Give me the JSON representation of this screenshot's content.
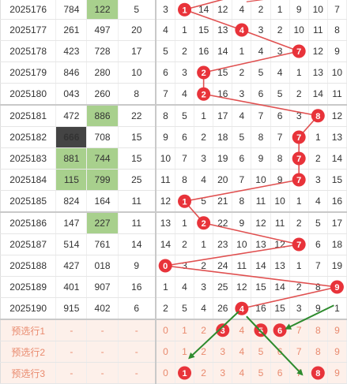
{
  "chart_data": {
    "type": "table",
    "rows": [
      {
        "issue": "2025176",
        "prize": "784",
        "prize_pair": false,
        "prize_tri": false,
        "col2": "122",
        "col2_pair": true,
        "sum": "5",
        "miss": [
          "3",
          "",
          "14",
          "12",
          "4",
          "2",
          "1",
          "9",
          "10",
          "7"
        ],
        "hit": 1
      },
      {
        "issue": "2025177",
        "prize": "261",
        "prize_pair": false,
        "prize_tri": false,
        "col2": "497",
        "col2_pair": false,
        "sum": "20",
        "miss": [
          "4",
          "1",
          "15",
          "13",
          "",
          "3",
          "2",
          "10",
          "11",
          "8"
        ],
        "hit": 4
      },
      {
        "issue": "2025178",
        "prize": "423",
        "prize_pair": false,
        "prize_tri": false,
        "col2": "728",
        "col2_pair": false,
        "sum": "17",
        "miss": [
          "5",
          "2",
          "16",
          "14",
          "1",
          "4",
          "3",
          "",
          "12",
          "9"
        ],
        "hit": 7
      },
      {
        "issue": "2025179",
        "prize": "846",
        "prize_pair": false,
        "prize_tri": false,
        "col2": "280",
        "col2_pair": false,
        "sum": "10",
        "miss": [
          "6",
          "3",
          "",
          "15",
          "2",
          "5",
          "4",
          "1",
          "13",
          "10"
        ],
        "hit": 2
      },
      {
        "issue": "2025180",
        "prize": "043",
        "prize_pair": false,
        "prize_tri": false,
        "col2": "260",
        "col2_pair": false,
        "sum": "8",
        "miss": [
          "7",
          "4",
          "",
          "16",
          "3",
          "6",
          "5",
          "2",
          "14",
          "11"
        ],
        "hit": 2
      },
      {
        "issue": "2025181",
        "prize": "472",
        "prize_pair": false,
        "prize_tri": false,
        "col2": "886",
        "col2_pair": true,
        "sum": "22",
        "miss": [
          "8",
          "5",
          "1",
          "17",
          "4",
          "7",
          "6",
          "3",
          "",
          "12"
        ],
        "hit": 8
      },
      {
        "issue": "2025182",
        "prize": "666",
        "prize_pair": false,
        "prize_tri": true,
        "col2": "708",
        "col2_pair": false,
        "sum": "15",
        "miss": [
          "9",
          "6",
          "2",
          "18",
          "5",
          "8",
          "7",
          "",
          "1",
          "13"
        ],
        "hit": 7
      },
      {
        "issue": "2025183",
        "prize": "881",
        "prize_pair": true,
        "prize_tri": false,
        "col2": "744",
        "col2_pair": true,
        "sum": "15",
        "miss": [
          "10",
          "7",
          "3",
          "19",
          "6",
          "9",
          "8",
          "",
          "2",
          "14"
        ],
        "hit": 7
      },
      {
        "issue": "2025184",
        "prize": "115",
        "prize_pair": true,
        "prize_tri": false,
        "col2": "799",
        "col2_pair": true,
        "sum": "25",
        "miss": [
          "11",
          "8",
          "4",
          "20",
          "7",
          "10",
          "9",
          "",
          "3",
          "15"
        ],
        "hit": 7
      },
      {
        "issue": "2025185",
        "prize": "824",
        "prize_pair": false,
        "prize_tri": false,
        "col2": "164",
        "col2_pair": false,
        "sum": "11",
        "miss": [
          "12",
          "",
          "5",
          "21",
          "8",
          "11",
          "10",
          "1",
          "4",
          "16"
        ],
        "hit": 1
      },
      {
        "issue": "2025186",
        "prize": "147",
        "prize_pair": false,
        "prize_tri": false,
        "col2": "227",
        "col2_pair": true,
        "sum": "11",
        "miss": [
          "13",
          "1",
          "",
          "22",
          "9",
          "12",
          "11",
          "2",
          "5",
          "17"
        ],
        "hit": 2
      },
      {
        "issue": "2025187",
        "prize": "514",
        "prize_pair": false,
        "prize_tri": false,
        "col2": "761",
        "col2_pair": false,
        "sum": "14",
        "miss": [
          "14",
          "2",
          "1",
          "23",
          "10",
          "13",
          "12",
          "",
          "6",
          "18"
        ],
        "hit": 7
      },
      {
        "issue": "2025188",
        "prize": "427",
        "prize_pair": false,
        "prize_tri": false,
        "col2": "018",
        "col2_pair": false,
        "sum": "9",
        "miss": [
          "",
          "3",
          "2",
          "24",
          "11",
          "14",
          "13",
          "1",
          "7",
          "19"
        ],
        "hit": 0
      },
      {
        "issue": "2025189",
        "prize": "401",
        "prize_pair": false,
        "prize_tri": false,
        "col2": "907",
        "col2_pair": false,
        "sum": "16",
        "miss": [
          "1",
          "4",
          "3",
          "25",
          "12",
          "15",
          "14",
          "2",
          "8",
          ""
        ],
        "hit": 9
      },
      {
        "issue": "2025190",
        "prize": "915",
        "prize_pair": false,
        "prize_tri": false,
        "col2": "402",
        "col2_pair": false,
        "sum": "6",
        "miss": [
          "2",
          "5",
          "4",
          "26",
          "",
          "16",
          "15",
          "3",
          "9",
          "1"
        ],
        "hit": 4
      }
    ],
    "preselect": [
      {
        "label": "预选行1",
        "dash1": "-",
        "dash2": "-",
        "dash3": "-",
        "digits": [
          "0",
          "1",
          "2",
          "",
          "4",
          "",
          "",
          "7",
          "8",
          "9"
        ],
        "balls": [
          3,
          5,
          6
        ]
      },
      {
        "label": "预选行2",
        "dash1": "-",
        "dash2": "-",
        "dash3": "-",
        "digits": [
          "0",
          "1",
          "2",
          "3",
          "4",
          "5",
          "6",
          "7",
          "8",
          "9"
        ],
        "balls": []
      },
      {
        "label": "预选行3",
        "dash1": "-",
        "dash2": "-",
        "dash3": "-",
        "digits": [
          "0",
          "",
          "2",
          "3",
          "4",
          "5",
          "6",
          "7",
          "",
          "9"
        ],
        "balls": [
          1,
          8
        ]
      }
    ],
    "ball_labels": [
      "0",
      "1",
      "2",
      "3",
      "4",
      "5",
      "6",
      "7",
      "8",
      "9"
    ],
    "colors": {
      "ball": "#e8333a",
      "line": "#e05050",
      "arrow": "#2e8b2e",
      "pair_bg": "#a8d08d",
      "tri_bg": "#444444",
      "miss_text": "#f29a9a",
      "pre_bg": "#fdf0ea"
    }
  }
}
